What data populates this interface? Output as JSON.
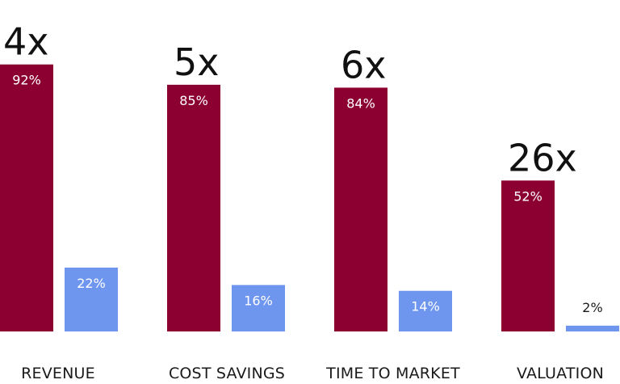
{
  "chart_data": {
    "type": "bar",
    "categories": [
      "REVENUE",
      "COST SAVINGS",
      "TIME TO MARKET",
      "VALUATION"
    ],
    "series": [
      {
        "values": [
          92,
          85,
          84,
          52
        ],
        "labels": [
          "92%",
          "85%",
          "84%",
          "52%"
        ],
        "color": "#8b0030"
      },
      {
        "values": [
          22,
          16,
          14,
          2
        ],
        "labels": [
          "22%",
          "16%",
          "14%",
          "2%"
        ],
        "color": "#6f96ef"
      }
    ],
    "multipliers": [
      "4x",
      "5x",
      "6x",
      "26x"
    ],
    "ylim": [
      0,
      100
    ],
    "grid": false,
    "title": "",
    "xlabel": "",
    "ylabel": ""
  }
}
